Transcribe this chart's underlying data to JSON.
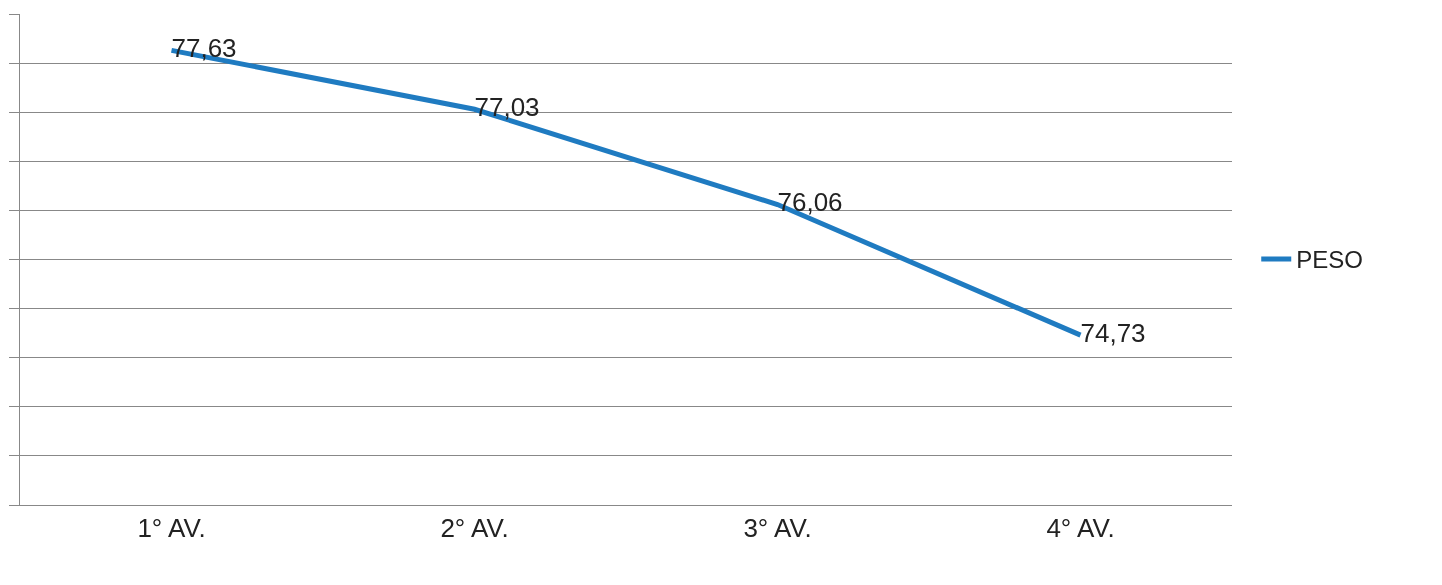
{
  "chart_data": {
    "type": "line",
    "categories": [
      "1° AV.",
      "2° AV.",
      "3° AV.",
      "4° AV."
    ],
    "series": [
      {
        "name": "PESO",
        "color": "#1f7bc1",
        "values": [
          77.63,
          77.03,
          76.06,
          74.73
        ],
        "value_labels": [
          "77,63",
          "77,03",
          "76,06",
          "74,73"
        ]
      }
    ],
    "ylim": [
      73,
      78
    ],
    "yticks": [
      {
        "value": 73,
        "label": null
      },
      {
        "value": 73.5,
        "label": null
      },
      {
        "value": 74,
        "label": null
      },
      {
        "value": 74.5,
        "label": null
      },
      {
        "value": 75,
        "label": null
      },
      {
        "value": 75.5,
        "label": null
      },
      {
        "value": 76,
        "label": null
      },
      {
        "value": 76.5,
        "label": null
      },
      {
        "value": 77,
        "label": null
      },
      {
        "value": 77.5,
        "label": null
      },
      {
        "value": 78,
        "label": null
      }
    ],
    "grid": "y",
    "legend": "right",
    "marker": "none",
    "line_style": "solid",
    "tick_labels": "x"
  }
}
